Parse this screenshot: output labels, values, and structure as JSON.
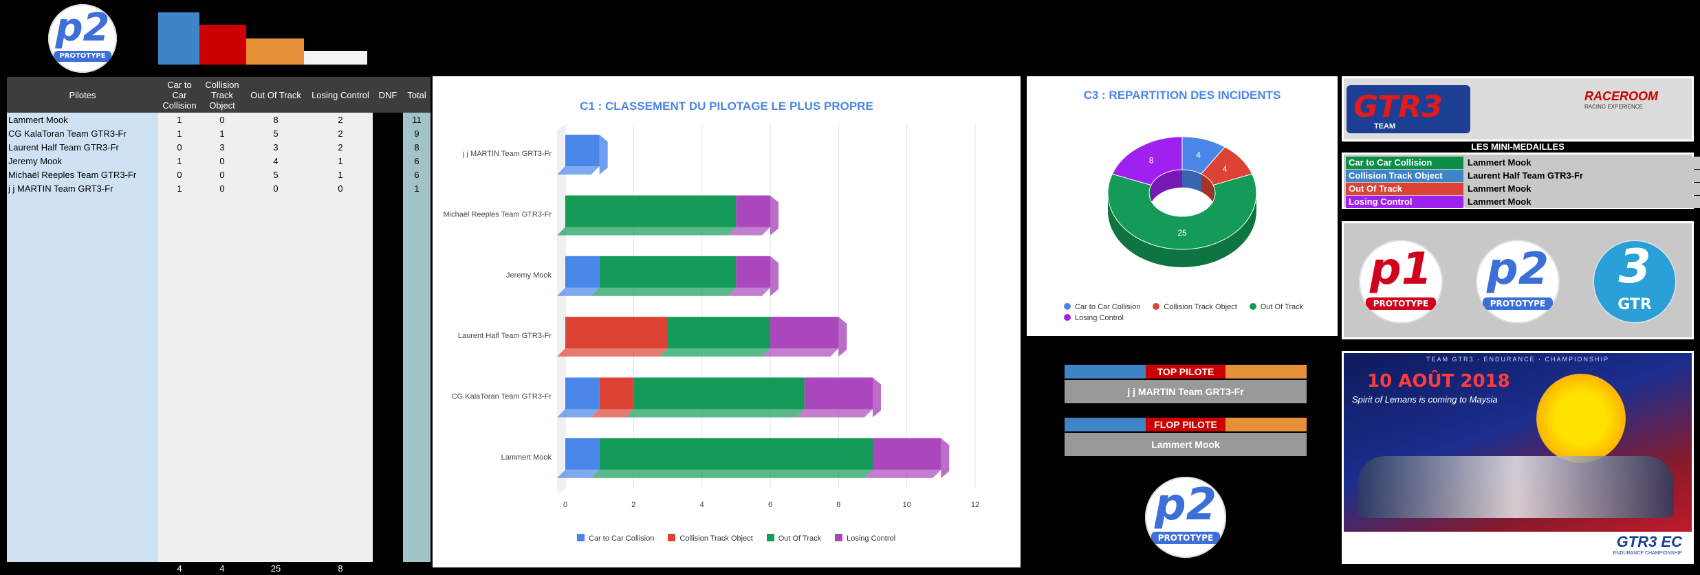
{
  "header": {
    "logo_top": {
      "big": "p2",
      "band": "PROTOTYPE"
    }
  },
  "colors": {
    "car": "#4a86e8",
    "track_object": "#dc4335",
    "out_of_track": "#139b57",
    "losing_control": "#ab47bc",
    "header_bar_blue": "#3d85c6",
    "header_bar_red": "#cc0000",
    "header_bar_orange": "#e69138"
  },
  "table": {
    "headers": [
      "Pilotes",
      "Car to Car Collision",
      "Collision Track Object",
      "Out Of Track",
      "Losing Control",
      "DNF",
      "Total"
    ],
    "rows": [
      {
        "name": "Lammert Mook",
        "car": "1",
        "track": "0",
        "out": "8",
        "lose": "2",
        "dnf": "",
        "total": "11"
      },
      {
        "name": "CG KalaToran Team GTR3-Fr",
        "car": "1",
        "track": "1",
        "out": "5",
        "lose": "2",
        "dnf": "",
        "total": "9"
      },
      {
        "name": "Laurent Half Team GTR3-Fr",
        "car": "0",
        "track": "3",
        "out": "3",
        "lose": "2",
        "dnf": "",
        "total": "8"
      },
      {
        "name": "Jeremy Mook",
        "car": "1",
        "track": "0",
        "out": "4",
        "lose": "1",
        "dnf": "",
        "total": "6"
      },
      {
        "name": "Michaël Reeples Team GTR3-Fr",
        "car": "0",
        "track": "0",
        "out": "5",
        "lose": "1",
        "dnf": "",
        "total": "6"
      },
      {
        "name": "j j MARTIN Team GRT3-Fr",
        "car": "1",
        "track": "0",
        "out": "0",
        "lose": "0",
        "dnf": "",
        "total": "1"
      }
    ],
    "totals": {
      "car": "4",
      "track": "4",
      "out": "25",
      "lose": "8"
    }
  },
  "chart_data": [
    {
      "type": "bar",
      "orientation": "horizontal",
      "stacked": true,
      "title": "C1 : CLASSEMENT DU PILOTAGE LE PLUS PROPRE",
      "categories": [
        "j j MARTIN Team GRT3-Fr",
        "Michaël Reeples Team GTR3-Fr",
        "Jeremy Mook",
        "Laurent Half Team GTR3-Fr",
        "CG KalaToran Team GTR3-Fr",
        "Lammert Mook"
      ],
      "series": [
        {
          "name": "Car to Car Collision",
          "values": [
            1,
            0,
            1,
            0,
            1,
            1
          ]
        },
        {
          "name": "Collision Track Object",
          "values": [
            0,
            0,
            0,
            3,
            1,
            0
          ]
        },
        {
          "name": "Out Of Track",
          "values": [
            0,
            5,
            4,
            3,
            5,
            8
          ]
        },
        {
          "name": "Losing Control",
          "values": [
            0,
            1,
            1,
            2,
            2,
            2
          ]
        }
      ],
      "xlim": [
        0,
        12
      ],
      "xticks": [
        "0",
        "2",
        "4",
        "6",
        "8",
        "10",
        "12"
      ],
      "legend": "bottom"
    },
    {
      "type": "pie",
      "donut": true,
      "title": "C3 : REPARTITION DES INCIDENTS",
      "labels": [
        "Car to Car Collision",
        "Collision Track Object",
        "Out Of Track",
        "Losing Control"
      ],
      "values": [
        4,
        4,
        25,
        8
      ],
      "legend": "bottom"
    }
  ],
  "medals": {
    "title": "LES MINI-MEDAILLES",
    "rows": [
      {
        "key": "Car to Car Collision",
        "value": "Lammert Mook"
      },
      {
        "key": "Collision Track Object",
        "value": "Laurent Half Team GTR3-Fr"
      },
      {
        "key": "Out Of Track",
        "value": "Lammert Mook"
      },
      {
        "key": "Losing Control",
        "value": "Lammert Mook"
      }
    ]
  },
  "top_pilot": {
    "label": "TOP PILOTE",
    "name": "j j MARTIN Team GRT3-Fr"
  },
  "flop_pilot": {
    "label": "FLOP PILOTE",
    "name": "Lammert Mook"
  },
  "logos": {
    "gtr3": "GTR3",
    "gtr3_team": "TEAM",
    "raceroom": "RACEROOM",
    "raceroom_sub": "RACING EXPERIENCE",
    "p1": {
      "big": "p1",
      "band": "PROTOTYPE"
    },
    "p2": {
      "big": "p2",
      "band": "PROTOTYPE"
    },
    "gtr": {
      "big": "3",
      "band": "GTR"
    },
    "bottom_p2": {
      "big": "p2",
      "band": "PROTOTYPE"
    }
  },
  "poster": {
    "header": "TEAM GTR3 · ENDURANCE · CHAMPIONSHIP",
    "date": "10 AOÛT 2018",
    "tagline": "Spirit of Lemans is coming to Maysia",
    "footer": "GTR3 EC",
    "footer_sub": "ENDURANCE CHAMPIONSHIP"
  }
}
